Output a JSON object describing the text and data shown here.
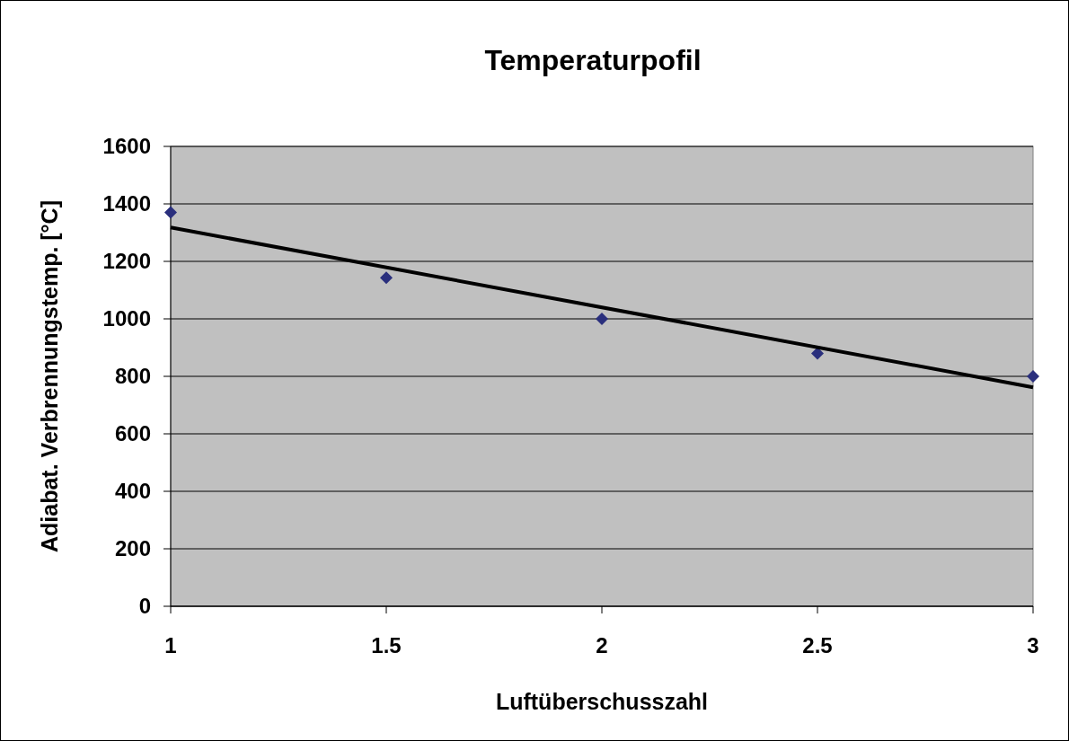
{
  "chart_data": {
    "type": "scatter",
    "title": "Temperaturpofil",
    "xlabel": "Luftüberschusszahl",
    "ylabel": "Adiabat. Verbrennungstemp. [°C]",
    "xlim": [
      1,
      3
    ],
    "xticks": [
      1,
      1.5,
      2,
      2.5,
      3
    ],
    "ylim": [
      0,
      1600
    ],
    "yticks": [
      0,
      200,
      400,
      600,
      800,
      1000,
      1200,
      1400,
      1600
    ],
    "grid": "y",
    "series": [
      {
        "color": "#2a2f7d",
        "marker": "diamond",
        "x": [
          1,
          1.5,
          2,
          2.5,
          3
        ],
        "values": [
          1370,
          1143,
          1000,
          880,
          800
        ]
      },
      {
        "type": "line",
        "color": "#000000",
        "marker": "none",
        "line_style": "solid",
        "x": [
          1,
          3
        ],
        "values": [
          1318,
          762
        ]
      }
    ]
  }
}
